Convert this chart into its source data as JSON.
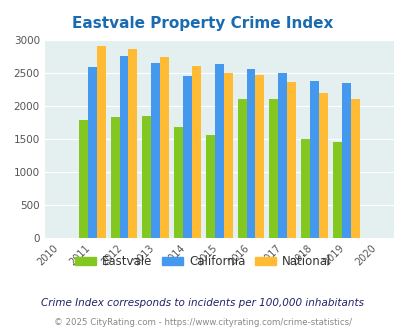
{
  "title": "Eastvale Property Crime Index",
  "years": [
    2010,
    2011,
    2012,
    2013,
    2014,
    2015,
    2016,
    2017,
    2018,
    2019,
    2020
  ],
  "bar_years": [
    2011,
    2012,
    2013,
    2014,
    2015,
    2016,
    2017,
    2018,
    2019
  ],
  "eastvale": [
    1780,
    1820,
    1840,
    1670,
    1555,
    2100,
    2100,
    1490,
    1445
  ],
  "california": [
    2580,
    2750,
    2650,
    2450,
    2630,
    2560,
    2500,
    2380,
    2340
  ],
  "national": [
    2910,
    2860,
    2740,
    2600,
    2500,
    2460,
    2360,
    2190,
    2100
  ],
  "color_eastvale": "#82c820",
  "color_california": "#4499ee",
  "color_national": "#ffbb33",
  "bg_color": "#e4f0f0",
  "title_color": "#1a6bb0",
  "ylim": [
    0,
    3000
  ],
  "yticks": [
    0,
    500,
    1000,
    1500,
    2000,
    2500,
    3000
  ],
  "note": "Crime Index corresponds to incidents per 100,000 inhabitants",
  "footer": "© 2025 CityRating.com - https://www.cityrating.com/crime-statistics/",
  "note_color": "#222266",
  "footer_color": "#888888",
  "legend_labels": [
    "Eastvale",
    "California",
    "National"
  ]
}
